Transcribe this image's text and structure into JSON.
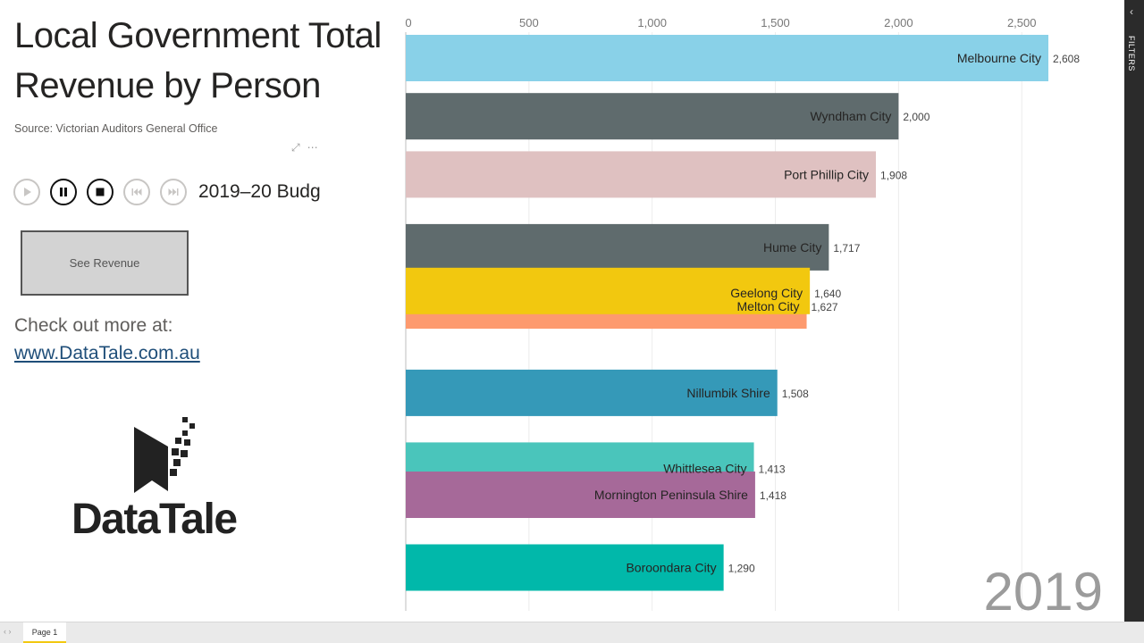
{
  "page": {
    "title": "Local Government Total Revenue by Person",
    "source": "Source: Victorian Auditors General Office",
    "visual_icons": [
      "focus-mode-icon",
      "more-options-icon"
    ],
    "player": {
      "label": "2019–20 Budg",
      "buttons": [
        "play-icon",
        "pause-icon",
        "stop-icon",
        "previous-icon",
        "next-icon"
      ]
    },
    "see_revenue_button": "See Revenue",
    "check_out": "Check out more at:",
    "link": "www.DataTale.com.au",
    "logo_text": "DataTale",
    "year": "2019",
    "filters_label": "FILTERS",
    "page_tab": "Page 1"
  },
  "chart_data": {
    "type": "bar",
    "orientation": "horizontal",
    "x_ticks": [
      0,
      500,
      1000,
      1500,
      2000,
      2500
    ],
    "x_tick_labels": [
      "0",
      "500",
      "1,000",
      "1,500",
      "2,000",
      "2,500"
    ],
    "xlim": [
      0,
      2608
    ],
    "grid": true,
    "bars": [
      {
        "name": "Melbourne City",
        "value": 2608,
        "value_label": "2,608",
        "color": "#89d1e8",
        "rank": 1
      },
      {
        "name": "Wyndham City",
        "value": 2000,
        "value_label": "2,000",
        "color": "#5f6b6d",
        "rank": 2
      },
      {
        "name": "Port Phillip City",
        "value": 1908,
        "value_label": "1,908",
        "color": "#dfc1c1",
        "rank": 3
      },
      {
        "name": "Hume City",
        "value": 1717,
        "value_label": "1,717",
        "color": "#5f6b6d",
        "rank": 4.25
      },
      {
        "name": "Melton City",
        "value": 1627,
        "value_label": "1,627",
        "color": "#fd9a6e",
        "rank": 5.25
      },
      {
        "name": "Geelong City",
        "value": 1640,
        "value_label": "1,640",
        "color": "#f2c80f",
        "rank": 5.0
      },
      {
        "name": "Nillumbik Shire",
        "value": 1508,
        "value_label": "1,508",
        "color": "#3599b8",
        "rank": 6.75
      },
      {
        "name": "Whittlesea City",
        "value": 1413,
        "value_label": "1,413",
        "color": "#4ac5bb",
        "rank": 8.0
      },
      {
        "name": "Mornington Peninsula Shire",
        "value": 1418,
        "value_label": "1,418",
        "color": "#a66999",
        "rank": 8.5
      },
      {
        "name": "Boroondara City",
        "value": 1290,
        "value_label": "1,290",
        "color": "#01b8aa",
        "rank": 9.75
      }
    ]
  }
}
